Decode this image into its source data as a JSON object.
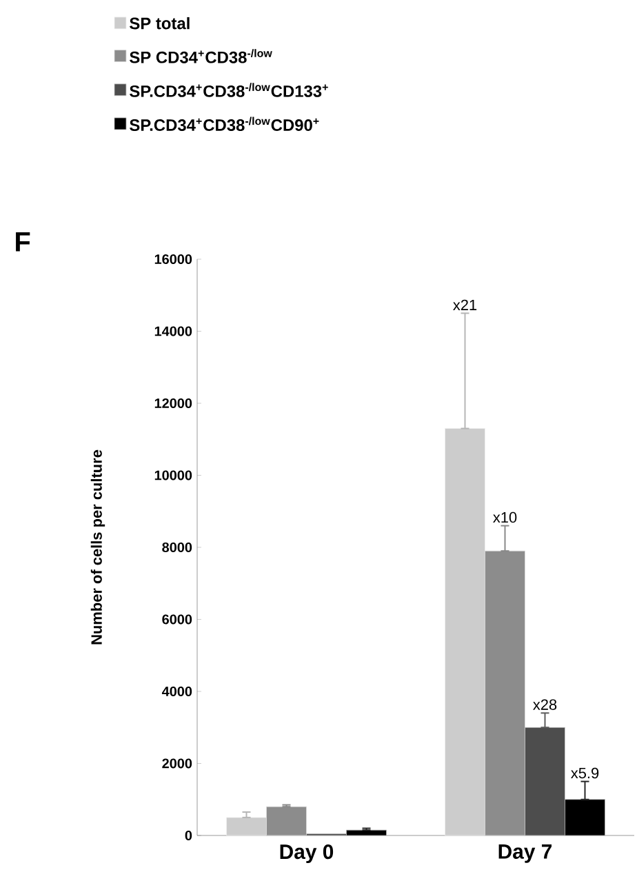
{
  "chart_data": {
    "type": "bar",
    "ylabel": "Number of cells per culture",
    "categories": [
      "Day 0",
      "Day 7"
    ],
    "series": [
      {
        "name": "SP total",
        "color": "#cccccc",
        "values": [
          500,
          11300
        ],
        "errors": [
          [
            500,
            650
          ],
          [
            11300,
            14500
          ]
        ]
      },
      {
        "name": "SP CD34$^{+}$CD38$^{-/low}$",
        "color": "#8c8c8c",
        "values": [
          800,
          7900
        ],
        "errors": [
          [
            800,
            850
          ],
          [
            7900,
            8600
          ]
        ]
      },
      {
        "name": "SP.CD34$^{+}$CD38$^{-/low}$CD133$^{+}$",
        "color": "#4d4d4d",
        "values": [
          50,
          3000
        ],
        "errors": [
          null,
          [
            3000,
            3400
          ]
        ]
      },
      {
        "name": "SP.CD34$^{+}$CD38$^{-/low}$CD90$^{+}$",
        "color": "#000000",
        "values": [
          150,
          1000
        ],
        "errors": [
          [
            150,
            200
          ],
          [
            1000,
            1500
          ]
        ]
      }
    ],
    "ylim": [
      0,
      16000
    ],
    "yticks": [
      0,
      2000,
      4000,
      6000,
      8000,
      10000,
      12000,
      14000,
      16000
    ],
    "grid": false,
    "legend": "top left",
    "annotations": [
      "F",
      "x21",
      "x10",
      "x28",
      "x5.9"
    ]
  }
}
